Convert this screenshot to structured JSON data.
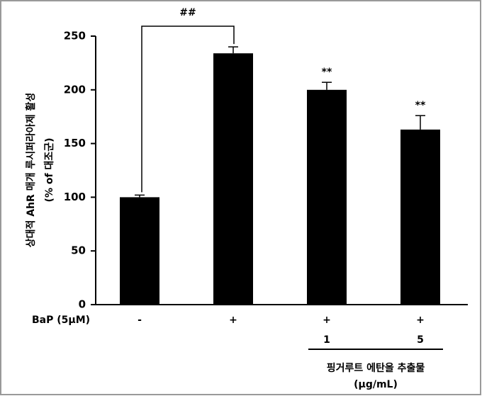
{
  "chart_data": {
    "type": "bar",
    "ylabel": [
      "상대적 AhR 매개 루시퍼라아제 활성",
      "(% of 대조군)"
    ],
    "row_label": "BaP (5μM)",
    "categories": [
      "-",
      "+",
      "+",
      "+"
    ],
    "dose": [
      null,
      null,
      "1",
      "5"
    ],
    "dose_label": [
      "핑거루트 에탄올 추출물",
      "(μg/mL)"
    ],
    "values": [
      100,
      234,
      200,
      163
    ],
    "errors": [
      2,
      6,
      7,
      13
    ],
    "significance": [
      null,
      "##",
      "**",
      "**"
    ],
    "color": "#000000",
    "ylim": [
      0,
      250
    ],
    "yticks": [
      0,
      50,
      100,
      150,
      200,
      250
    ],
    "grid": false
  }
}
